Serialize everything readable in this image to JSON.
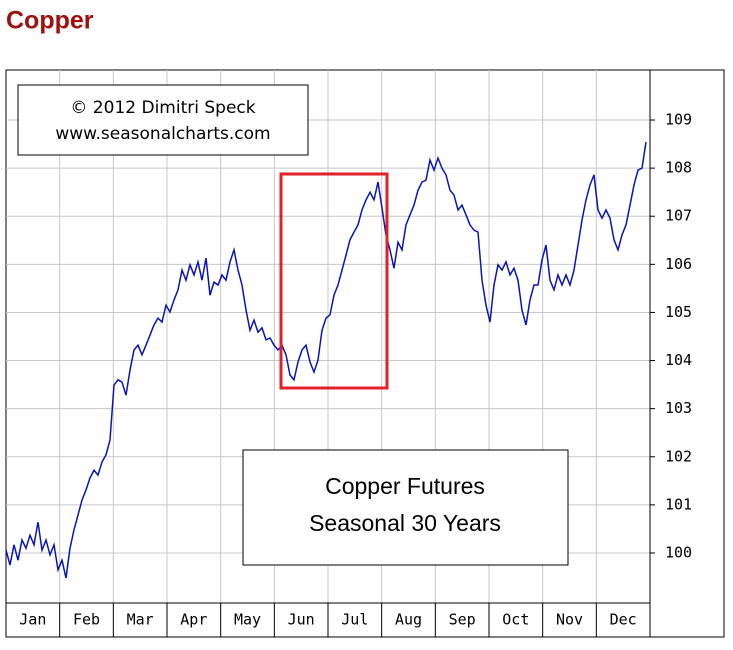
{
  "chart_data": {
    "type": "line",
    "title": "Copper",
    "copyright": "© 2012 Dimitri Speck",
    "website": "www.seasonalcharts.com",
    "annotation": [
      "Copper Futures",
      "Seasonal 30 Years"
    ],
    "months": [
      "Jan",
      "Feb",
      "Mar",
      "Apr",
      "May",
      "Jun",
      "Jul",
      "Aug",
      "Sep",
      "Oct",
      "Nov",
      "Dec"
    ],
    "series": [
      {
        "color": "#0a14b4",
        "values": [
          100.06,
          99.75,
          100.17,
          99.85,
          100.27,
          100.1,
          100.37,
          100.17,
          100.64,
          100.06,
          100.27,
          99.96,
          100.17,
          99.65,
          99.85,
          99.48,
          100.1,
          100.48,
          100.79,
          101.1,
          101.31,
          101.56,
          101.72,
          101.62,
          101.89,
          102.04,
          102.35,
          103.49,
          103.6,
          103.55,
          103.28,
          103.8,
          104.22,
          104.32,
          104.12,
          104.32,
          104.53,
          104.74,
          104.88,
          104.8,
          105.15,
          105.01,
          105.26,
          105.47,
          105.88,
          105.67,
          105.99,
          105.78,
          106.05,
          105.67,
          106.13,
          105.36,
          105.63,
          105.57,
          105.78,
          105.67,
          106.05,
          106.3,
          105.88,
          105.57,
          105.05,
          104.63,
          104.84,
          104.59,
          104.68,
          104.43,
          104.47,
          104.32,
          104.22,
          104.32,
          104.12,
          103.7,
          103.6,
          103.97,
          104.22,
          104.32,
          103.97,
          103.76,
          104.01,
          104.63,
          104.88,
          104.95,
          105.36,
          105.57,
          105.88,
          106.19,
          106.51,
          106.67,
          106.82,
          107.13,
          107.34,
          107.5,
          107.34,
          107.71,
          107.17,
          106.61,
          106.3,
          105.92,
          106.46,
          106.3,
          106.82,
          107.03,
          107.23,
          107.54,
          107.71,
          107.75,
          108.17,
          107.96,
          108.21,
          108.0,
          107.86,
          107.54,
          107.44,
          107.13,
          107.23,
          107.03,
          106.82,
          106.71,
          106.67,
          105.67,
          105.15,
          104.8,
          105.57,
          105.99,
          105.88,
          106.05,
          105.78,
          105.92,
          105.67,
          105.05,
          104.74,
          105.26,
          105.57,
          105.57,
          106.09,
          106.4,
          105.67,
          105.47,
          105.78,
          105.57,
          105.78,
          105.57,
          105.88,
          106.4,
          106.92,
          107.34,
          107.65,
          107.86,
          107.13,
          106.96,
          107.13,
          106.96,
          106.51,
          106.3,
          106.61,
          106.82,
          107.23,
          107.65,
          107.96,
          108.0,
          108.54
        ]
      }
    ],
    "ylim": [
      98.96,
      110.04
    ],
    "yticks": [
      100,
      101,
      102,
      103,
      104,
      105,
      106,
      107,
      108,
      109
    ],
    "grid": true
  }
}
